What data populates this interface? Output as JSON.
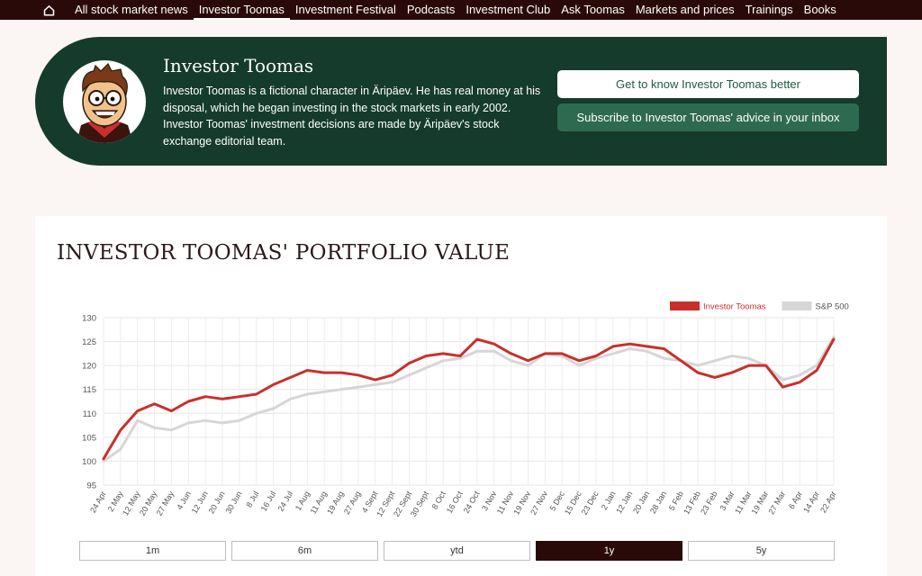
{
  "nav": {
    "items": [
      {
        "label": "All stock market news",
        "active": false
      },
      {
        "label": "Investor Toomas",
        "active": true
      },
      {
        "label": "Investment Festival",
        "active": false
      },
      {
        "label": "Podcasts",
        "active": false
      },
      {
        "label": "Investment Club",
        "active": false
      },
      {
        "label": "Ask Toomas",
        "active": false
      },
      {
        "label": "Markets and prices",
        "active": false
      },
      {
        "label": "Trainings",
        "active": false
      },
      {
        "label": "Books",
        "active": false
      }
    ]
  },
  "profile": {
    "name": "Investor Toomas",
    "description": "Investor Toomas is a fictional character in Äripäev. He has real money at his disposal, which he began investing in the stock markets in early 2002. Investor Toomas' investment decisions are made by Äripäev's stock exchange editorial team.",
    "button_know": "Get to know Investor Toomas better",
    "button_subscribe": "Subscribe to Investor Toomas' advice in your inbox"
  },
  "colors": {
    "nav_bg": "#2a0a08",
    "banner_bg": "#153b2c",
    "toomas_line": "#c9302c",
    "sp500_line": "#d6d6d6"
  },
  "portfolio": {
    "title": "INVESTOR TOOMAS' PORTFOLIO VALUE",
    "ranges": [
      {
        "label": "1m",
        "active": false
      },
      {
        "label": "6m",
        "active": false
      },
      {
        "label": "ytd",
        "active": false
      },
      {
        "label": "1y",
        "active": true
      },
      {
        "label": "5y",
        "active": false
      }
    ]
  },
  "chart_data": {
    "type": "line",
    "ylim": [
      95,
      130
    ],
    "yticks": [
      95,
      100,
      105,
      110,
      115,
      120,
      125,
      130
    ],
    "x": [
      "24 Apr",
      "2 May",
      "12 May",
      "20 May",
      "27 May",
      "4 Jun",
      "12 Jun",
      "20 Jun",
      "30 Jun",
      "8 Jul",
      "16 Jul",
      "24 Jul",
      "1 Aug",
      "11 Aug",
      "19 Aug",
      "27 Aug",
      "4 Sept",
      "12 Sept",
      "22 Sept",
      "30 Sept",
      "8 Oct",
      "16 Oct",
      "24 Oct",
      "3 Nov",
      "11 Nov",
      "19 Nov",
      "27 Nov",
      "5 Dec",
      "15 Dec",
      "23 Dec",
      "2 Jan",
      "12 Jan",
      "20 Jan",
      "28 Jan",
      "5 Feb",
      "13 Feb",
      "23 Feb",
      "3 Mar",
      "11 Mar",
      "19 Mar",
      "27 Mar",
      "6 Apr",
      "14 Apr",
      "22 Apr"
    ],
    "grid": true,
    "legend_position": "top-right",
    "series": [
      {
        "name": "Investor Toomas",
        "color": "#c9302c",
        "values": [
          100.5,
          106.5,
          110.5,
          112,
          110.5,
          112.5,
          113.5,
          113,
          113.5,
          114,
          116,
          117.5,
          119,
          118.5,
          118.5,
          118,
          117,
          118,
          120.5,
          122,
          122.5,
          122,
          125.5,
          124.5,
          122.5,
          121,
          122.5,
          122.5,
          121,
          122,
          124,
          124.5,
          124,
          123.5,
          121,
          118.5,
          117.5,
          118.5,
          120,
          120,
          115.5,
          116.5,
          119,
          125.5
        ]
      },
      {
        "name": "S&P 500",
        "color": "#d6d6d6",
        "values": [
          100,
          102.5,
          108.5,
          107,
          106.5,
          108,
          108.5,
          108,
          108.5,
          110,
          111,
          113,
          114,
          114.5,
          115,
          115.5,
          116,
          116.5,
          118,
          119.5,
          121,
          121.5,
          123,
          123,
          121,
          120,
          122.5,
          122,
          120,
          121.5,
          122.5,
          123.5,
          123,
          121.5,
          121,
          120,
          121,
          122,
          121.5,
          120,
          117,
          118,
          120,
          126
        ]
      }
    ]
  }
}
